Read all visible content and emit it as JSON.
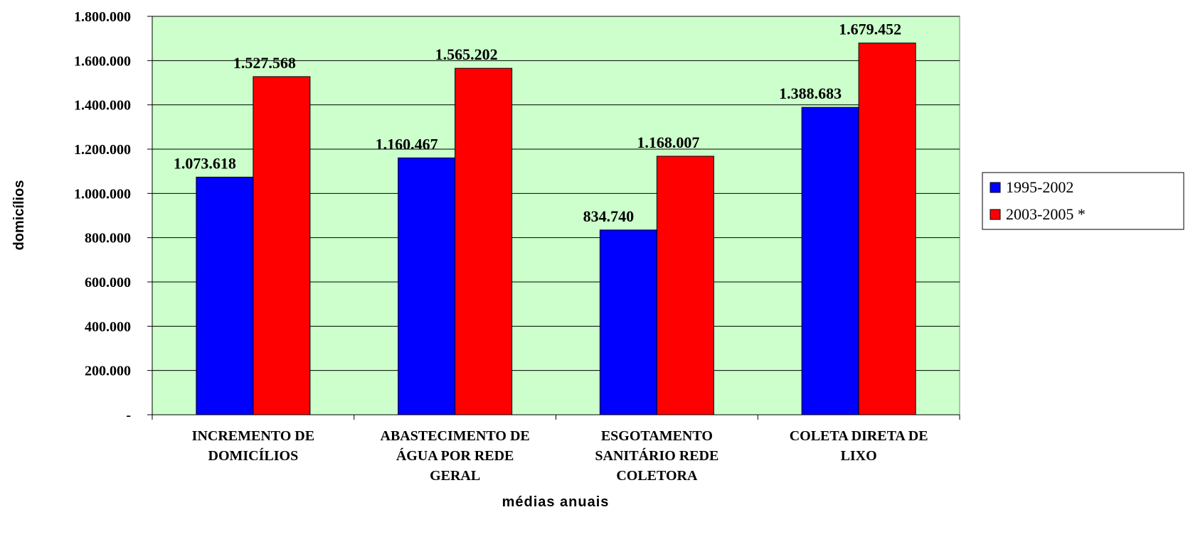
{
  "chart_data": {
    "type": "bar",
    "categories": [
      [
        "INCREMENTO DE",
        "DOMICÍLIOS"
      ],
      [
        "ABASTECIMENTO DE",
        "ÁGUA POR REDE",
        "GERAL"
      ],
      [
        "ESGOTAMENTO",
        "SANITÁRIO REDE",
        "COLETORA"
      ],
      [
        "COLETA DIRETA DE",
        "LIXO"
      ]
    ],
    "series": [
      {
        "name": "1995-2002",
        "color": "#0000FF",
        "values": [
          1073618,
          1160467,
          834740,
          1388683
        ],
        "labels": [
          "1.073.618",
          "1.160.467",
          "834.740",
          "1.388.683"
        ]
      },
      {
        "name": "2003-2005 *",
        "color": "#FF0000",
        "values": [
          1527568,
          1565202,
          1168007,
          1679452
        ],
        "labels": [
          "1.527.568",
          "1.565.202",
          "1.168.007",
          "1.679.452"
        ]
      }
    ],
    "ylim": [
      0,
      1800000
    ],
    "yticks": [
      0,
      200000,
      400000,
      600000,
      800000,
      1000000,
      1200000,
      1400000,
      1600000,
      1800000
    ],
    "ytick_labels": [
      "-",
      "200.000",
      "400.000",
      "600.000",
      "800.000",
      "1.000.000",
      "1.200.000",
      "1.400.000",
      "1.600.000",
      "1.800.000"
    ],
    "xlabel": "médias anuais",
    "ylabel": "domicílios",
    "plot_background": "#CCFFCC",
    "grid": true,
    "legend_position": "right"
  }
}
